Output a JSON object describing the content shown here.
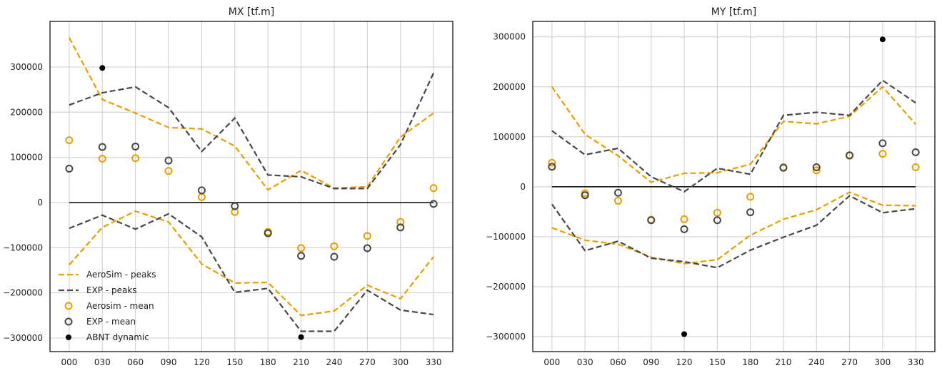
{
  "colors": {
    "aerosim": "#E69F00",
    "exp": "#474747",
    "abnt": "#000000",
    "grid": "#cccccc"
  },
  "legend": {
    "placement": "lower-left",
    "entries": [
      "AeroSim - peaks",
      "EXP - peaks",
      "Aerosim - mean",
      "EXP - mean",
      "ABNT dynamic"
    ]
  },
  "chart_data": [
    {
      "type": "line",
      "title": "MX [tf.m]",
      "grid": true,
      "legend": "lower-left",
      "categories": [
        "000",
        "030",
        "060",
        "090",
        "120",
        "150",
        "180",
        "210",
        "240",
        "270",
        "300",
        "330"
      ],
      "ylim": [
        -330000,
        401000
      ],
      "yticks": [
        -300000,
        -200000,
        -100000,
        0,
        100000,
        200000,
        300000
      ],
      "series": [
        {
          "name": "AeroSim - peaks",
          "style": "dashed",
          "color": "aerosim",
          "values": [
            365000,
            228000,
            198000,
            166000,
            163000,
            125000,
            28000,
            71000,
            32000,
            35000,
            145000,
            198000
          ]
        },
        {
          "name": "AeroSim - peaks",
          "style": "dashed",
          "color": "aerosim",
          "values": [
            -138000,
            -55000,
            -19000,
            -43000,
            -136000,
            -178000,
            -177000,
            -250000,
            -240000,
            -183000,
            -213000,
            -120000
          ]
        },
        {
          "name": "EXP - peaks",
          "style": "dashed",
          "color": "exp",
          "values": [
            216000,
            243000,
            256000,
            210000,
            113000,
            187000,
            61000,
            57000,
            31000,
            31000,
            128000,
            287000
          ]
        },
        {
          "name": "EXP - peaks",
          "style": "dashed",
          "color": "exp",
          "values": [
            -57000,
            -28000,
            -59000,
            -25000,
            -76000,
            -199000,
            -190000,
            -285000,
            -285000,
            -194000,
            -238000,
            -248000
          ]
        },
        {
          "name": "Aerosim - mean",
          "style": "ring",
          "color": "aerosim",
          "values": [
            138000,
            97000,
            98000,
            70000,
            12000,
            -21000,
            -65000,
            -101000,
            -97000,
            -74000,
            -43000,
            32000
          ]
        },
        {
          "name": "EXP - mean",
          "style": "ring",
          "color": "exp",
          "values": [
            75000,
            123000,
            124000,
            93000,
            27000,
            -8000,
            -68000,
            -118000,
            -120000,
            -101000,
            -55000,
            -3000
          ]
        },
        {
          "name": "ABNT dynamic",
          "style": "dot",
          "color": "abnt",
          "values": [
            null,
            298000,
            null,
            null,
            null,
            null,
            null,
            -298000,
            null,
            null,
            null,
            null
          ]
        }
      ]
    },
    {
      "type": "line",
      "title": "MY [tf.m]",
      "grid": true,
      "categories": [
        "000",
        "030",
        "060",
        "090",
        "120",
        "150",
        "180",
        "210",
        "240",
        "270",
        "300",
        "330"
      ],
      "ylim": [
        -330000,
        331000
      ],
      "yticks": [
        -300000,
        -200000,
        -100000,
        0,
        100000,
        200000,
        300000
      ],
      "series": [
        {
          "name": "AeroSim - peaks",
          "style": "dashed",
          "color": "aerosim",
          "values": [
            200000,
            105000,
            62000,
            9000,
            27000,
            28000,
            45000,
            131000,
            126000,
            141000,
            200000,
            125000
          ]
        },
        {
          "name": "AeroSim - peaks",
          "style": "dashed",
          "color": "aerosim",
          "values": [
            -82000,
            -107000,
            -115000,
            -141000,
            -154000,
            -146000,
            -97000,
            -65000,
            -46000,
            -11000,
            -37000,
            -38000
          ]
        },
        {
          "name": "EXP - peaks",
          "style": "dashed",
          "color": "exp",
          "values": [
            112000,
            64000,
            77000,
            20000,
            -10000,
            37000,
            25000,
            143000,
            149000,
            143000,
            213000,
            168000
          ]
        },
        {
          "name": "EXP - peaks",
          "style": "dashed",
          "color": "exp",
          "values": [
            -35000,
            -128000,
            -109000,
            -143000,
            -150000,
            -162000,
            -127000,
            -101000,
            -77000,
            -18000,
            -52000,
            -44000
          ]
        },
        {
          "name": "Aerosim - mean",
          "style": "ring",
          "color": "aerosim",
          "values": [
            48000,
            -13000,
            -28000,
            -66000,
            -65000,
            -52000,
            -20000,
            39000,
            33000,
            62000,
            66000,
            39000
          ]
        },
        {
          "name": "EXP - mean",
          "style": "ring",
          "color": "exp",
          "values": [
            40000,
            -17000,
            -12000,
            -67000,
            -85000,
            -67000,
            -51000,
            38000,
            39000,
            63000,
            87000,
            69000
          ]
        },
        {
          "name": "ABNT dynamic",
          "style": "dot",
          "color": "abnt",
          "values": [
            null,
            null,
            null,
            null,
            -295000,
            null,
            null,
            null,
            null,
            null,
            295000,
            null
          ]
        }
      ]
    }
  ]
}
